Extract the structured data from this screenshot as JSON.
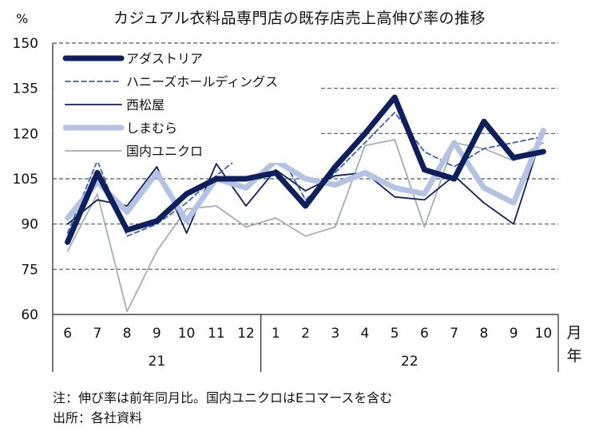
{
  "title": "カジュアル衣料品専門店の既存店売上高伸び率の推移",
  "notes": {
    "note": "注：伸び率は前年同月比。国内ユニクロはEコマースを含む",
    "source": "出所：各社資料"
  },
  "chart_data": {
    "type": "line",
    "title": "カジュアル衣料品専門店の既存店売上高伸び率の推移",
    "ylabel": "%",
    "xlabel_month": "月",
    "xlabel_year": "年",
    "ylim": [
      60,
      150
    ],
    "yticks": [
      60,
      75,
      90,
      105,
      120,
      135,
      150
    ],
    "categories": [
      "6",
      "7",
      "8",
      "9",
      "10",
      "11",
      "12",
      "1",
      "2",
      "3",
      "4",
      "5",
      "6",
      "7",
      "8",
      "9",
      "10"
    ],
    "year_groups": [
      {
        "label": "21",
        "count": 7
      },
      {
        "label": "22",
        "count": 10
      }
    ],
    "legend_position": "top-left",
    "series": [
      {
        "name": "アダストリア",
        "color": "#0d1f5c",
        "style": "thick",
        "values": [
          84,
          107,
          88,
          91,
          100,
          105,
          105,
          107,
          96,
          109,
          120,
          132,
          108,
          105,
          124,
          112,
          114
        ]
      },
      {
        "name": "ハニーズホールディングス",
        "color": "#3a5fb8",
        "style": "dashed",
        "values": [
          87,
          111,
          86,
          90,
          97,
          106,
          114,
          116,
          98,
          107,
          117,
          127,
          114,
          109,
          115,
          117,
          119
        ]
      },
      {
        "name": "西松屋",
        "color": "#0d1f5c",
        "style": "thin",
        "values": [
          90,
          98,
          96,
          109,
          87,
          110,
          96,
          108,
          101,
          106,
          107,
          99,
          98,
          106,
          97,
          90,
          121
        ]
      },
      {
        "name": "しまむら",
        "color": "#b4c3e4",
        "style": "thick-light",
        "values": [
          92,
          104,
          94,
          107,
          91,
          105,
          102,
          111,
          105,
          103,
          107,
          102,
          100,
          117,
          102,
          97,
          121
        ]
      },
      {
        "name": "国内ユニクロ",
        "color": "#a6acb8",
        "style": "thin-gray",
        "values": [
          81,
          100,
          61,
          81,
          95,
          96,
          89,
          92,
          86,
          89,
          116,
          118,
          89,
          117,
          115,
          111,
          117
        ]
      }
    ]
  }
}
